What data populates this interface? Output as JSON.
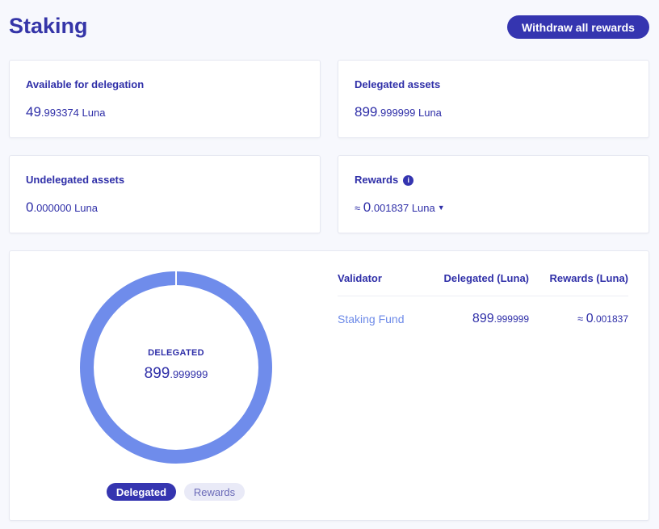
{
  "page": {
    "title": "Staking",
    "withdraw_label": "Withdraw all rewards"
  },
  "cards": {
    "available": {
      "label": "Available for delegation",
      "int": "49",
      "dec": ".993374",
      "unit": " Luna"
    },
    "delegated": {
      "label": "Delegated assets",
      "int": "899",
      "dec": ".999999",
      "unit": " Luna"
    },
    "undelegated": {
      "label": "Undelegated assets",
      "int": "0",
      "dec": ".000000",
      "unit": " Luna"
    },
    "rewards": {
      "label": "Rewards",
      "approx": "≈ ",
      "int": "0",
      "dec": ".001837",
      "unit": " Luna",
      "info_icon": "info-icon",
      "caret_icon": "caret-down-icon"
    }
  },
  "chart": {
    "center_label": "DELEGATED",
    "center_int": "899",
    "center_dec": ".999999",
    "color": "#6f8ceb",
    "tabs": [
      {
        "label": "Delegated",
        "active": true
      },
      {
        "label": "Rewards",
        "active": false
      }
    ]
  },
  "table": {
    "headers": [
      "Validator",
      "Delegated (Luna)",
      "Rewards (Luna)"
    ],
    "rows": [
      {
        "validator": "Staking Fund",
        "delegated_int": "899",
        "delegated_dec": ".999999",
        "rewards_approx": "≈ ",
        "rewards_int": "0",
        "rewards_dec": ".001837"
      }
    ]
  }
}
